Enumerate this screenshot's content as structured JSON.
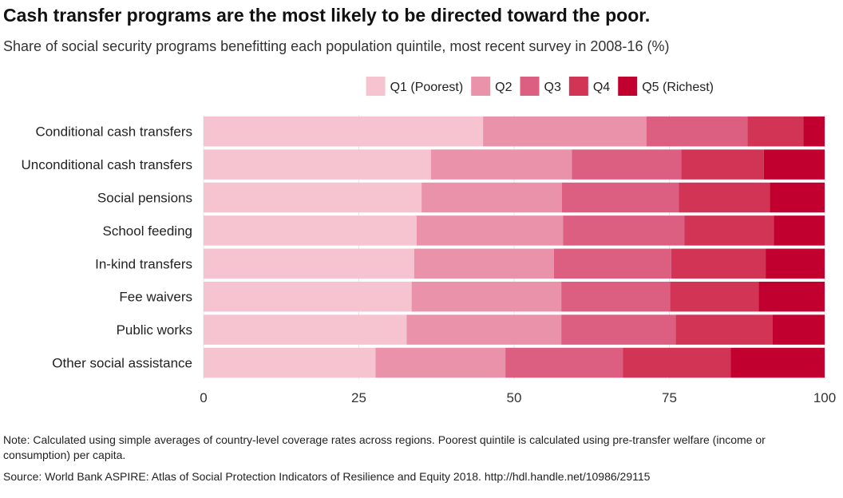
{
  "chart_data": {
    "type": "bar",
    "orientation": "horizontal",
    "stacked": true,
    "title": "Cash transfer programs are the most likely to be directed toward the poor.",
    "subtitle": "Share of social security programs benefitting each population quintile, most recent survey in 2008-16 (%)",
    "xlabel": "",
    "ylabel": "",
    "xlim": [
      0,
      100
    ],
    "xticks": [
      0,
      25,
      50,
      75,
      100
    ],
    "grid": "vertical",
    "legend_position": "top-right",
    "categories": [
      "Conditional cash transfers",
      "Unconditional cash transfers",
      "Social pensions",
      "School feeding",
      "In-kind transfers",
      "Fee waivers",
      "Public works",
      "Other social assistance"
    ],
    "series": [
      {
        "name": "Q1 (Poorest)",
        "color": "#f6c4d1",
        "values": [
          45.0,
          36.6,
          35.1,
          34.3,
          33.9,
          33.5,
          32.7,
          27.7
        ]
      },
      {
        "name": "Q2",
        "color": "#e992aa",
        "values": [
          26.3,
          22.7,
          22.6,
          23.6,
          22.5,
          24.1,
          24.9,
          20.9
        ]
      },
      {
        "name": "Q3",
        "color": "#dc5e80",
        "values": [
          16.3,
          17.6,
          18.8,
          19.5,
          18.9,
          17.5,
          18.4,
          18.9
        ]
      },
      {
        "name": "Q4",
        "color": "#d13455",
        "values": [
          9.0,
          13.3,
          14.7,
          14.4,
          15.2,
          14.3,
          15.6,
          17.4
        ]
      },
      {
        "name": "Q5 (Richest)",
        "color": "#c2002f",
        "values": [
          3.4,
          9.8,
          8.8,
          8.2,
          9.5,
          10.6,
          8.4,
          15.1
        ]
      }
    ]
  },
  "note": "Note: Calculated using simple averages of country-level coverage rates across regions. Poorest quintile is calculated using pre-transfer welfare (income or consumption) per capita.",
  "source": "Source: World Bank ASPIRE: Atlas of Social Protection Indicators of Resilience and Equity  2018. http://hdl.handle.net/10986/29115"
}
